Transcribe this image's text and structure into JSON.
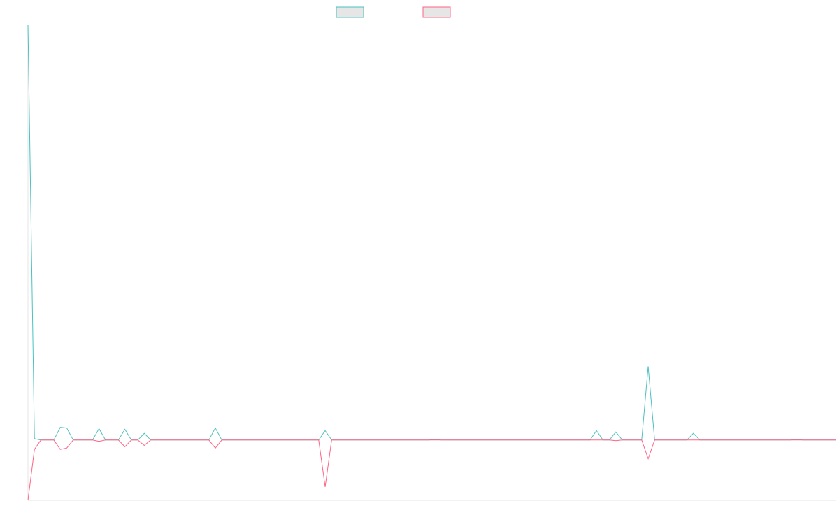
{
  "chart_data": {
    "type": "line",
    "title": "",
    "xlabel": "",
    "ylabel": "",
    "ylim": [
      -9,
      62
    ],
    "grid": false,
    "legend_placement": "top-center",
    "series": [
      {
        "name": "",
        "color": "#4bc0c0",
        "fill": "#e6e6e6",
        "values": [
          62,
          0.2,
          0,
          0,
          0,
          1.9,
          1.8,
          0,
          0,
          0,
          0,
          1.7,
          0,
          0,
          0,
          1.6,
          0,
          0,
          1,
          0,
          0,
          0,
          0,
          0,
          0,
          0,
          0,
          0,
          0,
          1.8,
          0,
          0,
          0,
          0,
          0,
          0,
          0,
          0,
          0,
          0,
          0,
          0,
          0,
          0,
          0,
          0,
          1.4,
          0,
          0,
          0,
          0,
          0,
          0,
          0,
          0,
          0,
          0,
          0,
          0,
          0,
          0,
          0,
          0,
          0.1,
          0,
          0,
          0,
          0,
          0,
          0,
          0,
          0,
          0,
          0,
          0,
          0,
          0,
          0,
          0,
          0,
          0,
          0,
          0,
          0,
          0,
          0,
          0,
          0,
          1.4,
          0,
          0,
          1.2,
          0,
          0,
          0,
          0,
          11,
          0,
          0,
          0,
          0,
          0,
          0,
          1,
          0,
          0,
          0,
          0,
          0,
          0,
          0,
          0,
          0,
          0,
          0,
          0,
          0,
          0,
          0,
          0.1,
          0,
          0,
          0,
          0,
          0,
          0
        ]
      },
      {
        "name": "",
        "color": "#ff6384",
        "fill": "#e6e6e6",
        "values": [
          -9,
          -1.4,
          0,
          0,
          0,
          -1.4,
          -1.2,
          0,
          0,
          0,
          0,
          -0.2,
          0,
          0,
          0,
          -1,
          0,
          0,
          -0.8,
          0,
          0,
          0,
          0,
          0,
          0,
          0,
          0,
          0,
          0,
          -1.2,
          0,
          0,
          0,
          0,
          0,
          0,
          0,
          0,
          0,
          0,
          0,
          0,
          0,
          0,
          0,
          0,
          -7,
          0,
          0,
          0,
          0,
          0,
          0,
          0,
          0,
          0,
          0,
          0,
          0,
          0,
          0,
          0,
          0,
          0,
          0,
          0,
          0,
          0,
          0,
          0,
          0,
          0,
          0,
          0,
          0,
          0,
          0,
          0,
          0,
          0,
          0,
          0,
          0,
          0,
          0,
          0,
          0,
          0,
          0,
          0,
          0,
          -0.1,
          0,
          0,
          0,
          0,
          -2.8,
          0,
          0,
          0,
          0,
          0,
          0,
          0,
          0,
          0,
          0,
          0,
          0,
          0,
          0,
          0,
          0,
          0,
          0,
          0,
          0,
          0,
          0,
          0,
          0,
          0,
          0,
          0,
          0,
          0
        ]
      }
    ]
  }
}
